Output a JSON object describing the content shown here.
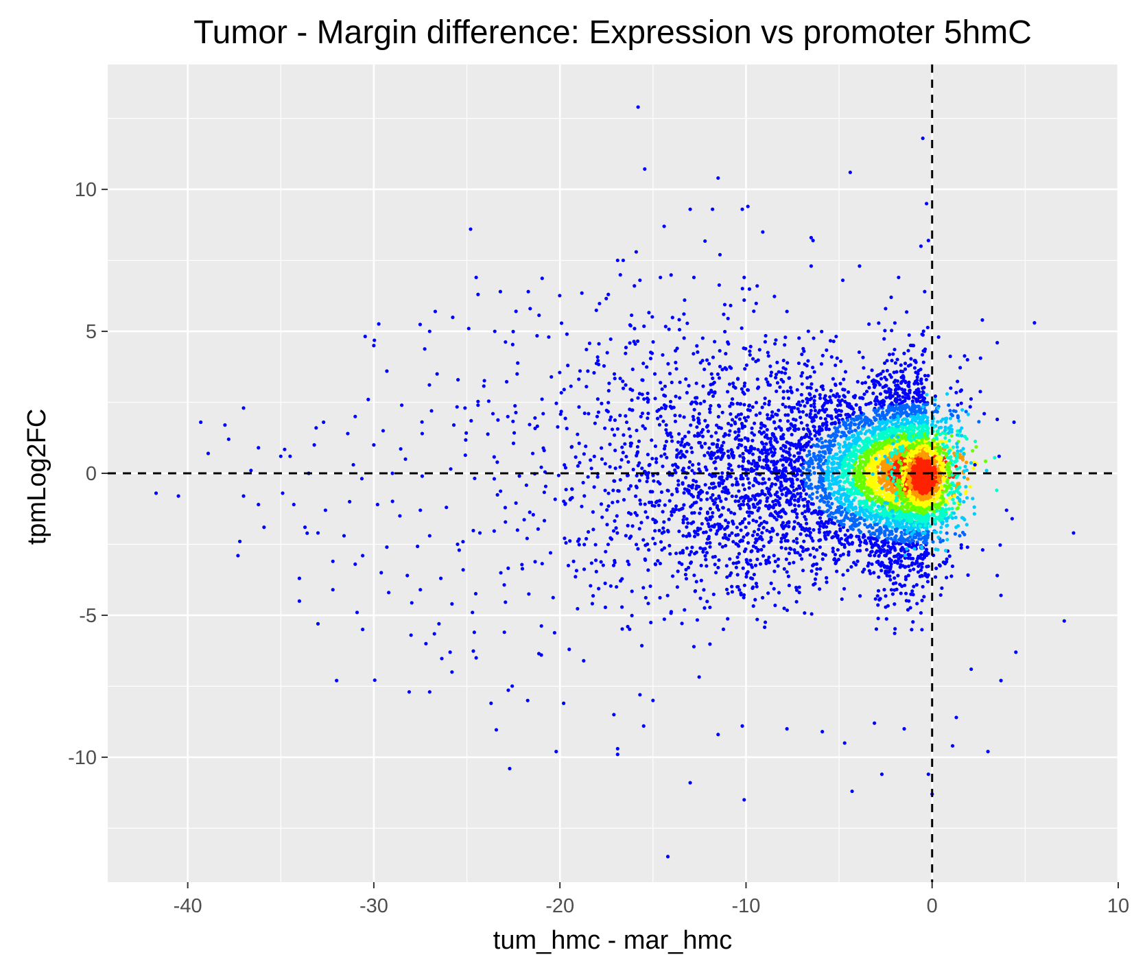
{
  "chart_data": {
    "type": "scatter",
    "title": "Tumor - Margin difference: Expression vs promoter 5hmC",
    "xlabel": "tum_hmc - mar_hmc",
    "ylabel": "tpmLog2FC",
    "xlim": [
      -44.3,
      10
    ],
    "ylim": [
      -14.4,
      14.4
    ],
    "x_ticks": [
      -40,
      -30,
      -20,
      -10,
      0,
      10
    ],
    "x_tick_labels": [
      "-40",
      "-30",
      "-20",
      "-10",
      "0",
      "10"
    ],
    "y_ticks": [
      -10,
      -5,
      0,
      5,
      10
    ],
    "y_tick_labels": [
      "-10",
      "-5",
      "0",
      "5",
      "10"
    ],
    "grid": true,
    "reference_lines": [
      {
        "orientation": "vertical",
        "value": 0,
        "style": "dashed"
      },
      {
        "orientation": "horizontal",
        "value": 0,
        "style": "dashed"
      }
    ],
    "color_encoding": "point density (blue = low, cyan/green = medium, yellow/red = high)",
    "density_colors": [
      "#0000ff",
      "#0066ff",
      "#00ccff",
      "#00ffcc",
      "#66ff00",
      "#ffff00",
      "#ff9900",
      "#ff2200"
    ],
    "colors": {
      "panel_background": "#ebebeb",
      "grid_major": "#ffffff",
      "reference_line": "#000000"
    },
    "series": [
      {
        "values": [
          [
            -15.8,
            12.9
          ],
          [
            -0.5,
            11.8
          ],
          [
            -11.5,
            10.4
          ],
          [
            -4.4,
            10.6
          ],
          [
            -9.9,
            9.4
          ],
          [
            -10.2,
            9.3
          ],
          [
            -11.8,
            9.3
          ],
          [
            -13,
            9.3
          ],
          [
            -0.3,
            9.5
          ],
          [
            -14.4,
            8.7
          ],
          [
            -24.8,
            8.6
          ],
          [
            -9.1,
            8.5
          ],
          [
            -6.5,
            8.3
          ],
          [
            -6.4,
            8.2
          ],
          [
            -0.2,
            8.2
          ],
          [
            -0.6,
            8.0
          ],
          [
            -15.9,
            7.8
          ],
          [
            -11.4,
            7.7
          ],
          [
            -16.9,
            7.5
          ],
          [
            -16.6,
            7.5
          ],
          [
            -3.9,
            7.3
          ],
          [
            -6.5,
            7.3
          ],
          [
            -1.8,
            6.9
          ],
          [
            -10.1,
            6.9
          ],
          [
            -12.8,
            6.9
          ],
          [
            -14.6,
            6.9
          ],
          [
            -24.5,
            6.9
          ],
          [
            -15.7,
            6.8
          ],
          [
            -9.4,
            6.6
          ],
          [
            -4.8,
            6.8
          ],
          [
            -0.4,
            6.4
          ],
          [
            -23.2,
            6.4
          ],
          [
            -21.7,
            6.4
          ],
          [
            -24.4,
            6.3
          ],
          [
            -17.4,
            6.3
          ],
          [
            -13.3,
            6.1
          ],
          [
            -10.1,
            6.1
          ],
          [
            -2.2,
            6.2
          ],
          [
            -21.6,
            5.8
          ],
          [
            -26.7,
            5.7
          ],
          [
            -7.8,
            5.7
          ],
          [
            -11.2,
            5.6
          ],
          [
            -2.5,
            5.8
          ],
          [
            -16.2,
            5.2
          ],
          [
            2.7,
            5.4
          ],
          [
            5.5,
            5.3
          ],
          [
            -24.9,
            5.1
          ],
          [
            -27.0,
            5.0
          ],
          [
            -23.5,
            5.0
          ],
          [
            -20.6,
            4.8
          ],
          [
            -30.0,
            4.5
          ],
          [
            3.5,
            4.6
          ],
          [
            -1.0,
            4.5
          ],
          [
            1.9,
            4.0
          ],
          [
            -13.7,
            4.4
          ],
          [
            -9.8,
            4.3
          ],
          [
            -5.4,
            4.1
          ],
          [
            -2.1,
            4.2
          ],
          [
            -18.5,
            3.6
          ],
          [
            -8.1,
            3.3
          ],
          [
            -29.3,
            3.6
          ],
          [
            -26.6,
            3.5
          ],
          [
            -22.3,
            3.5
          ],
          [
            -14.9,
            3.5
          ],
          [
            -11.7,
            3.2
          ],
          [
            1.0,
            3.0
          ],
          [
            -30.3,
            2.6
          ],
          [
            -28.5,
            2.4
          ],
          [
            -26.9,
            2.2
          ],
          [
            -25.1,
            2.3
          ],
          [
            -24.4,
            2.4
          ],
          [
            -23.6,
            2.1
          ],
          [
            -20.9,
            2.1
          ],
          [
            -18.0,
            2.0
          ],
          [
            -37.0,
            2.3
          ],
          [
            -39.3,
            1.8
          ],
          [
            -38.0,
            1.7
          ],
          [
            -32.7,
            1.8
          ],
          [
            -31.0,
            2.0
          ],
          [
            -33.1,
            1.6
          ],
          [
            -31.4,
            1.4
          ],
          [
            -29.5,
            1.5
          ],
          [
            -27.4,
            1.4
          ],
          [
            -25.7,
            1.7
          ],
          [
            2.8,
            2.1
          ],
          [
            3.5,
            1.9
          ],
          [
            4.4,
            1.8
          ],
          [
            -37.8,
            1.2
          ],
          [
            -38.9,
            0.7
          ],
          [
            -36.2,
            0.9
          ],
          [
            -34.5,
            0.6
          ],
          [
            -33.2,
            1.0
          ],
          [
            -30.0,
            1.0
          ],
          [
            -28.3,
            0.5
          ],
          [
            -35.0,
            0.6
          ],
          [
            -36.6,
            0.1
          ],
          [
            -33.5,
            0.0
          ],
          [
            -31.1,
            0.3
          ],
          [
            -29.0,
            0.0
          ],
          [
            -27.4,
            -0.1
          ],
          [
            2.3,
            0.3
          ],
          [
            3.6,
            0.6
          ],
          [
            -41.7,
            -0.7
          ],
          [
            -40.5,
            -0.8
          ],
          [
            -37.0,
            -0.8
          ],
          [
            -36.2,
            -1.1
          ],
          [
            -34.3,
            -1.1
          ],
          [
            -34.9,
            -0.7
          ],
          [
            -33.7,
            -1.9
          ],
          [
            -32.6,
            -1.3
          ],
          [
            -31.3,
            -1.0
          ],
          [
            -29.8,
            -1.1
          ],
          [
            -28.6,
            -1.5
          ],
          [
            -27.5,
            -1.3
          ],
          [
            -26.1,
            -1.2
          ],
          [
            -35.9,
            -1.9
          ],
          [
            -37.2,
            -2.4
          ],
          [
            -37.3,
            -2.9
          ],
          [
            -33.0,
            -2.1
          ],
          [
            -31.6,
            -2.2
          ],
          [
            -30.6,
            -2.9
          ],
          [
            -29.3,
            -2.6
          ],
          [
            -27.0,
            -2.2
          ],
          [
            -25.5,
            -2.5
          ],
          [
            -24.3,
            -2.1
          ],
          [
            4.0,
            -1.3
          ],
          [
            4.3,
            -1.6
          ],
          [
            7.6,
            -2.1
          ],
          [
            -34.0,
            -3.7
          ],
          [
            -32.2,
            -3.1
          ],
          [
            -31.0,
            -3.2
          ],
          [
            -29.6,
            -3.5
          ],
          [
            -28.2,
            -3.6
          ],
          [
            -26.4,
            -3.7
          ],
          [
            -25.2,
            -3.4
          ],
          [
            -34.0,
            -4.5
          ],
          [
            -32.2,
            -4.1
          ],
          [
            -30.9,
            -4.9
          ],
          [
            -29.2,
            -4.2
          ],
          [
            -27.5,
            -4.1
          ],
          [
            -25.8,
            -4.6
          ],
          [
            -24.7,
            -4.9
          ],
          [
            -33.0,
            -5.3
          ],
          [
            -30.6,
            -5.5
          ],
          [
            -28.0,
            -5.7
          ],
          [
            -26.5,
            -5.3
          ],
          [
            -24.6,
            -5.6
          ],
          [
            3.5,
            -3.6
          ],
          [
            3.7,
            -4.3
          ],
          [
            7.1,
            -5.2
          ],
          [
            -27.2,
            -6.0
          ],
          [
            -25.9,
            -6.3
          ],
          [
            -24.5,
            -6.5
          ],
          [
            -21.0,
            -6.4
          ],
          [
            -19.5,
            -6.2
          ],
          [
            -25.8,
            -7.0
          ],
          [
            -27.0,
            -7.7
          ],
          [
            -28.1,
            -7.7
          ],
          [
            -23.7,
            -8.1
          ],
          [
            -32.0,
            -7.3
          ],
          [
            -20.2,
            -9.8
          ],
          [
            -16.9,
            -9.7
          ],
          [
            -16.9,
            -9.9
          ],
          [
            -19.8,
            -8.1
          ],
          [
            -17.1,
            -8.5
          ],
          [
            -15.7,
            -7.8
          ],
          [
            -15.0,
            -8.0
          ],
          [
            -15.5,
            -8.9
          ],
          [
            -11.5,
            -9.2
          ],
          [
            -10.2,
            -8.9
          ],
          [
            -7.8,
            -9.0
          ],
          [
            -5.9,
            -9.1
          ],
          [
            -4.7,
            -9.5
          ],
          [
            -3.1,
            -8.8
          ],
          [
            -1.5,
            -9.0
          ],
          [
            -22.7,
            -10.4
          ],
          [
            -13.0,
            -10.9
          ],
          [
            -10.1,
            -11.5
          ],
          [
            -4.3,
            -11.2
          ],
          [
            -2.7,
            -10.6
          ],
          [
            -14.2,
            -13.5
          ],
          [
            -0.2,
            -10.6
          ],
          [
            0.0,
            -11.3
          ],
          [
            1.1,
            -9.6
          ],
          [
            3.0,
            -9.8
          ],
          [
            4.5,
            -6.3
          ],
          [
            3.7,
            -7.3
          ],
          [
            2.1,
            -6.9
          ],
          [
            1.3,
            -8.6
          ]
        ]
      }
    ]
  }
}
